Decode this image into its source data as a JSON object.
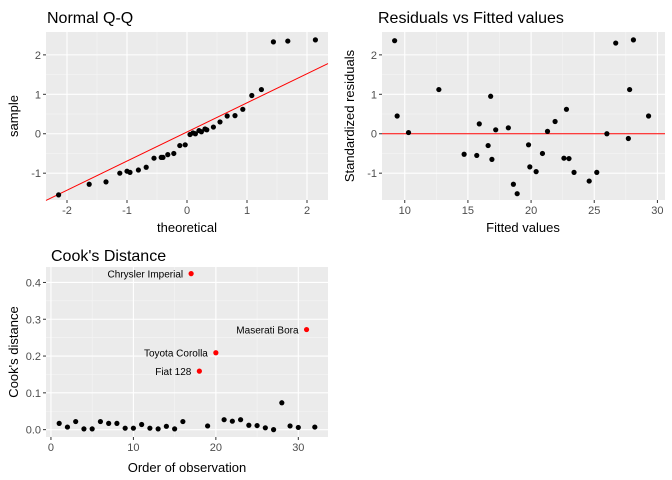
{
  "chart_data": [
    {
      "type": "scatter",
      "title": "Normal Q-Q",
      "xlabel": "theoretical",
      "ylabel": "sample",
      "xlim": [
        -2.35,
        2.35
      ],
      "ylim": [
        -1.68,
        2.58
      ],
      "xticks": [
        -2,
        -1,
        0,
        1,
        2
      ],
      "yticks": [
        -1,
        0,
        1,
        2
      ],
      "reference_line": {
        "x": [
          -2.35,
          2.35
        ],
        "y": [
          -1.69,
          1.78
        ],
        "color": "#ff0000"
      },
      "points": {
        "x": [
          -2.14,
          -1.63,
          -1.35,
          -1.12,
          -0.95,
          -0.81,
          -0.68,
          -0.55,
          -0.43,
          -0.32,
          -0.22,
          -0.12,
          -0.03,
          0.05,
          0.14,
          0.24,
          0.33,
          0.44,
          0.55,
          0.67,
          0.8,
          0.93,
          1.08,
          1.24,
          1.44,
          1.68,
          2.14,
          -1.0,
          -0.4,
          0.1,
          0.2,
          0.3
        ],
        "y": [
          -1.55,
          -1.28,
          -1.22,
          -1.0,
          -0.98,
          -0.92,
          -0.85,
          -0.62,
          -0.6,
          -0.53,
          -0.5,
          -0.3,
          -0.28,
          -0.02,
          0.0,
          0.05,
          0.1,
          0.17,
          0.3,
          0.45,
          0.46,
          0.62,
          0.97,
          1.12,
          2.33,
          2.35,
          2.38,
          -0.95,
          -0.6,
          0.02,
          0.08,
          0.12
        ]
      }
    },
    {
      "type": "scatter",
      "title": "Residuals vs Fitted values",
      "xlabel": "Fitted values",
      "ylabel": "Standardized residuals",
      "xlim": [
        8.2,
        30.6
      ],
      "ylim": [
        -1.68,
        2.58
      ],
      "xticks": [
        10,
        15,
        20,
        25,
        30
      ],
      "yticks": [
        -1,
        0,
        1,
        2
      ],
      "reference_line": {
        "y": 0,
        "color": "#ff0000"
      },
      "points": {
        "x": [
          9.2,
          9.4,
          10.3,
          12.7,
          14.7,
          15.7,
          15.9,
          16.6,
          16.8,
          16.9,
          17.2,
          18.2,
          18.6,
          18.9,
          19.8,
          19.9,
          20.4,
          20.9,
          21.3,
          21.9,
          22.6,
          22.8,
          23.0,
          23.4,
          24.6,
          25.2,
          26.0,
          26.7,
          27.7,
          27.8,
          28.1,
          29.3
        ],
        "y": [
          2.36,
          0.45,
          0.03,
          1.12,
          -0.52,
          -0.55,
          0.25,
          -0.3,
          0.95,
          -0.65,
          0.1,
          0.15,
          -1.28,
          -1.52,
          -0.28,
          -0.84,
          -0.96,
          -0.5,
          0.06,
          0.31,
          -0.62,
          0.62,
          -0.63,
          -0.98,
          -1.2,
          -0.98,
          0.0,
          2.3,
          -0.12,
          1.12,
          2.38,
          0.45
        ]
      }
    },
    {
      "type": "scatter",
      "title": "Cook's Distance",
      "xlabel": "Order of observation",
      "ylabel": "Cook's distance",
      "xlim": [
        -0.6,
        33.6
      ],
      "ylim": [
        -0.02,
        0.442
      ],
      "xticks": [
        0,
        10,
        20,
        30
      ],
      "yticks": [
        0.0,
        0.1,
        0.2,
        0.3,
        0.4
      ],
      "ytick_labels": [
        "0.0",
        "0.1",
        "0.2",
        "0.3",
        "0.4"
      ],
      "highlight_color": "#ff0000",
      "points": {
        "x": [
          1,
          2,
          3,
          4,
          5,
          6,
          7,
          8,
          9,
          10,
          11,
          12,
          13,
          14,
          15,
          16,
          17,
          18,
          19,
          20,
          21,
          22,
          23,
          24,
          25,
          26,
          27,
          28,
          29,
          30,
          31,
          32
        ],
        "y": [
          0.017,
          0.007,
          0.022,
          0.002,
          0.002,
          0.022,
          0.017,
          0.017,
          0.004,
          0.004,
          0.014,
          0.004,
          0.002,
          0.009,
          0.002,
          0.022,
          0.424,
          0.159,
          0.01,
          0.209,
          0.027,
          0.023,
          0.027,
          0.012,
          0.011,
          0.005,
          0.0,
          0.073,
          0.01,
          0.006,
          0.272,
          0.007
        ],
        "highlight": [
          false,
          false,
          false,
          false,
          false,
          false,
          false,
          false,
          false,
          false,
          false,
          false,
          false,
          false,
          false,
          false,
          true,
          true,
          false,
          true,
          false,
          false,
          false,
          false,
          false,
          false,
          false,
          false,
          false,
          false,
          true,
          false
        ]
      },
      "annotations": [
        {
          "label": "Chrysler Imperial",
          "x": 17,
          "y": 0.424
        },
        {
          "label": "Fiat 128",
          "x": 18,
          "y": 0.159
        },
        {
          "label": "Toyota Corolla",
          "x": 20,
          "y": 0.209
        },
        {
          "label": "Maserati Bora",
          "x": 31,
          "y": 0.272
        }
      ]
    }
  ]
}
